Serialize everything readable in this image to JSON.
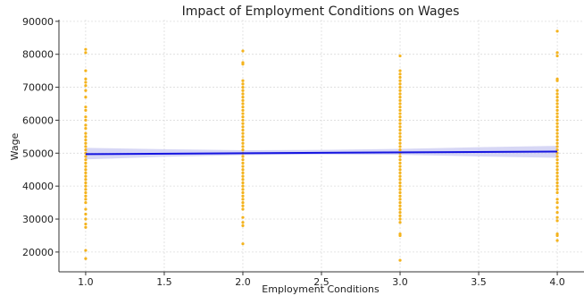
{
  "chart_data": {
    "type": "scatter",
    "title": "Impact of Employment Conditions on Wages",
    "xlabel": "Employment Conditions",
    "ylabel": "Wage",
    "xlim": [
      0.83,
      4.17
    ],
    "ylim": [
      14000,
      90500
    ],
    "x_ticks": [
      "1.0",
      "1.5",
      "2.0",
      "2.5",
      "3.0",
      "3.5",
      "4.0"
    ],
    "y_ticks": [
      "20000",
      "30000",
      "40000",
      "50000",
      "60000",
      "70000",
      "80000",
      "90000"
    ],
    "grid": true,
    "colors": {
      "points": "#f4b31d",
      "regression_line": "#1515e0",
      "confidence_band": "#c9c9f2"
    },
    "series": [
      {
        "type": "scatter",
        "points": [
          {
            "x": 1,
            "y": 81500
          },
          {
            "x": 1,
            "y": 80500
          },
          {
            "x": 1,
            "y": 75000
          },
          {
            "x": 1,
            "y": 72500
          },
          {
            "x": 1,
            "y": 71500
          },
          {
            "x": 1,
            "y": 70500
          },
          {
            "x": 1,
            "y": 69000
          },
          {
            "x": 1,
            "y": 67000
          },
          {
            "x": 1,
            "y": 64000
          },
          {
            "x": 1,
            "y": 63000
          },
          {
            "x": 1,
            "y": 61000
          },
          {
            "x": 1,
            "y": 60000
          },
          {
            "x": 1,
            "y": 58500
          },
          {
            "x": 1,
            "y": 57500
          },
          {
            "x": 1,
            "y": 56000
          },
          {
            "x": 1,
            "y": 55000
          },
          {
            "x": 1,
            "y": 54000
          },
          {
            "x": 1,
            "y": 53000
          },
          {
            "x": 1,
            "y": 52000
          },
          {
            "x": 1,
            "y": 51000
          },
          {
            "x": 1,
            "y": 50000
          },
          {
            "x": 1,
            "y": 49000
          },
          {
            "x": 1,
            "y": 48000
          },
          {
            "x": 1,
            "y": 47000
          },
          {
            "x": 1,
            "y": 46000
          },
          {
            "x": 1,
            "y": 45000
          },
          {
            "x": 1,
            "y": 44000
          },
          {
            "x": 1,
            "y": 43000
          },
          {
            "x": 1,
            "y": 42000
          },
          {
            "x": 1,
            "y": 41000
          },
          {
            "x": 1,
            "y": 40000
          },
          {
            "x": 1,
            "y": 39000
          },
          {
            "x": 1,
            "y": 38000
          },
          {
            "x": 1,
            "y": 37000
          },
          {
            "x": 1,
            "y": 36000
          },
          {
            "x": 1,
            "y": 35000
          },
          {
            "x": 1,
            "y": 33000
          },
          {
            "x": 1,
            "y": 31500
          },
          {
            "x": 1,
            "y": 30000
          },
          {
            "x": 1,
            "y": 28500
          },
          {
            "x": 1,
            "y": 27500
          },
          {
            "x": 1,
            "y": 20500
          },
          {
            "x": 1,
            "y": 18000
          },
          {
            "x": 2,
            "y": 81000
          },
          {
            "x": 2,
            "y": 77500
          },
          {
            "x": 2,
            "y": 77000
          },
          {
            "x": 2,
            "y": 72000
          },
          {
            "x": 2,
            "y": 71000
          },
          {
            "x": 2,
            "y": 70000
          },
          {
            "x": 2,
            "y": 69000
          },
          {
            "x": 2,
            "y": 68000
          },
          {
            "x": 2,
            "y": 67000
          },
          {
            "x": 2,
            "y": 66000
          },
          {
            "x": 2,
            "y": 65000
          },
          {
            "x": 2,
            "y": 64000
          },
          {
            "x": 2,
            "y": 63000
          },
          {
            "x": 2,
            "y": 62000
          },
          {
            "x": 2,
            "y": 61000
          },
          {
            "x": 2,
            "y": 60000
          },
          {
            "x": 2,
            "y": 59000
          },
          {
            "x": 2,
            "y": 58000
          },
          {
            "x": 2,
            "y": 57000
          },
          {
            "x": 2,
            "y": 56000
          },
          {
            "x": 2,
            "y": 55000
          },
          {
            "x": 2,
            "y": 54000
          },
          {
            "x": 2,
            "y": 53000
          },
          {
            "x": 2,
            "y": 52000
          },
          {
            "x": 2,
            "y": 51000
          },
          {
            "x": 2,
            "y": 50000
          },
          {
            "x": 2,
            "y": 49000
          },
          {
            "x": 2,
            "y": 48000
          },
          {
            "x": 2,
            "y": 47000
          },
          {
            "x": 2,
            "y": 46000
          },
          {
            "x": 2,
            "y": 45000
          },
          {
            "x": 2,
            "y": 44000
          },
          {
            "x": 2,
            "y": 43000
          },
          {
            "x": 2,
            "y": 42000
          },
          {
            "x": 2,
            "y": 41000
          },
          {
            "x": 2,
            "y": 40000
          },
          {
            "x": 2,
            "y": 39000
          },
          {
            "x": 2,
            "y": 38000
          },
          {
            "x": 2,
            "y": 37000
          },
          {
            "x": 2,
            "y": 36000
          },
          {
            "x": 2,
            "y": 35000
          },
          {
            "x": 2,
            "y": 34000
          },
          {
            "x": 2,
            "y": 33000
          },
          {
            "x": 2,
            "y": 30500
          },
          {
            "x": 2,
            "y": 29000
          },
          {
            "x": 2,
            "y": 28000
          },
          {
            "x": 2,
            "y": 22500
          },
          {
            "x": 3,
            "y": 79500
          },
          {
            "x": 3,
            "y": 75000
          },
          {
            "x": 3,
            "y": 74000
          },
          {
            "x": 3,
            "y": 73000
          },
          {
            "x": 3,
            "y": 72000
          },
          {
            "x": 3,
            "y": 71000
          },
          {
            "x": 3,
            "y": 70000
          },
          {
            "x": 3,
            "y": 69000
          },
          {
            "x": 3,
            "y": 68000
          },
          {
            "x": 3,
            "y": 67000
          },
          {
            "x": 3,
            "y": 66000
          },
          {
            "x": 3,
            "y": 65000
          },
          {
            "x": 3,
            "y": 64000
          },
          {
            "x": 3,
            "y": 63000
          },
          {
            "x": 3,
            "y": 62000
          },
          {
            "x": 3,
            "y": 61000
          },
          {
            "x": 3,
            "y": 60000
          },
          {
            "x": 3,
            "y": 59000
          },
          {
            "x": 3,
            "y": 58000
          },
          {
            "x": 3,
            "y": 57000
          },
          {
            "x": 3,
            "y": 56000
          },
          {
            "x": 3,
            "y": 55000
          },
          {
            "x": 3,
            "y": 54000
          },
          {
            "x": 3,
            "y": 53000
          },
          {
            "x": 3,
            "y": 52000
          },
          {
            "x": 3,
            "y": 51000
          },
          {
            "x": 3,
            "y": 50000
          },
          {
            "x": 3,
            "y": 49000
          },
          {
            "x": 3,
            "y": 48000
          },
          {
            "x": 3,
            "y": 47000
          },
          {
            "x": 3,
            "y": 46000
          },
          {
            "x": 3,
            "y": 45000
          },
          {
            "x": 3,
            "y": 44000
          },
          {
            "x": 3,
            "y": 43000
          },
          {
            "x": 3,
            "y": 42000
          },
          {
            "x": 3,
            "y": 41000
          },
          {
            "x": 3,
            "y": 40000
          },
          {
            "x": 3,
            "y": 39000
          },
          {
            "x": 3,
            "y": 38000
          },
          {
            "x": 3,
            "y": 37000
          },
          {
            "x": 3,
            "y": 36000
          },
          {
            "x": 3,
            "y": 35000
          },
          {
            "x": 3,
            "y": 34000
          },
          {
            "x": 3,
            "y": 33000
          },
          {
            "x": 3,
            "y": 32000
          },
          {
            "x": 3,
            "y": 31000
          },
          {
            "x": 3,
            "y": 30000
          },
          {
            "x": 3,
            "y": 29000
          },
          {
            "x": 3,
            "y": 25500
          },
          {
            "x": 3,
            "y": 25000
          },
          {
            "x": 3,
            "y": 17500
          },
          {
            "x": 4,
            "y": 87000
          },
          {
            "x": 4,
            "y": 80500
          },
          {
            "x": 4,
            "y": 79500
          },
          {
            "x": 4,
            "y": 72500
          },
          {
            "x": 4,
            "y": 72000
          },
          {
            "x": 4,
            "y": 69000
          },
          {
            "x": 4,
            "y": 68000
          },
          {
            "x": 4,
            "y": 67000
          },
          {
            "x": 4,
            "y": 66000
          },
          {
            "x": 4,
            "y": 65000
          },
          {
            "x": 4,
            "y": 64000
          },
          {
            "x": 4,
            "y": 63000
          },
          {
            "x": 4,
            "y": 62000
          },
          {
            "x": 4,
            "y": 61000
          },
          {
            "x": 4,
            "y": 60000
          },
          {
            "x": 4,
            "y": 59000
          },
          {
            "x": 4,
            "y": 58000
          },
          {
            "x": 4,
            "y": 57000
          },
          {
            "x": 4,
            "y": 56000
          },
          {
            "x": 4,
            "y": 55000
          },
          {
            "x": 4,
            "y": 54000
          },
          {
            "x": 4,
            "y": 53000
          },
          {
            "x": 4,
            "y": 52000
          },
          {
            "x": 4,
            "y": 51000
          },
          {
            "x": 4,
            "y": 50000
          },
          {
            "x": 4,
            "y": 49000
          },
          {
            "x": 4,
            "y": 48000
          },
          {
            "x": 4,
            "y": 47000
          },
          {
            "x": 4,
            "y": 46000
          },
          {
            "x": 4,
            "y": 45000
          },
          {
            "x": 4,
            "y": 44000
          },
          {
            "x": 4,
            "y": 43000
          },
          {
            "x": 4,
            "y": 42000
          },
          {
            "x": 4,
            "y": 41000
          },
          {
            "x": 4,
            "y": 40000
          },
          {
            "x": 4,
            "y": 39000
          },
          {
            "x": 4,
            "y": 38000
          },
          {
            "x": 4,
            "y": 36000
          },
          {
            "x": 4,
            "y": 35000
          },
          {
            "x": 4,
            "y": 33500
          },
          {
            "x": 4,
            "y": 32000
          },
          {
            "x": 4,
            "y": 30500
          },
          {
            "x": 4,
            "y": 29500
          },
          {
            "x": 4,
            "y": 25500
          },
          {
            "x": 4,
            "y": 25000
          },
          {
            "x": 4,
            "y": 23500
          }
        ]
      },
      {
        "type": "line",
        "x": [
          1,
          4
        ],
        "y": [
          49700,
          50500
        ]
      },
      {
        "type": "band",
        "x": [
          1,
          1.5,
          2,
          2.5,
          3,
          3.5,
          4
        ],
        "lower": [
          48100,
          48900,
          49400,
          49600,
          49500,
          49000,
          48600
        ],
        "upper": [
          51600,
          51200,
          50900,
          51000,
          51300,
          51800,
          52200
        ]
      }
    ]
  }
}
